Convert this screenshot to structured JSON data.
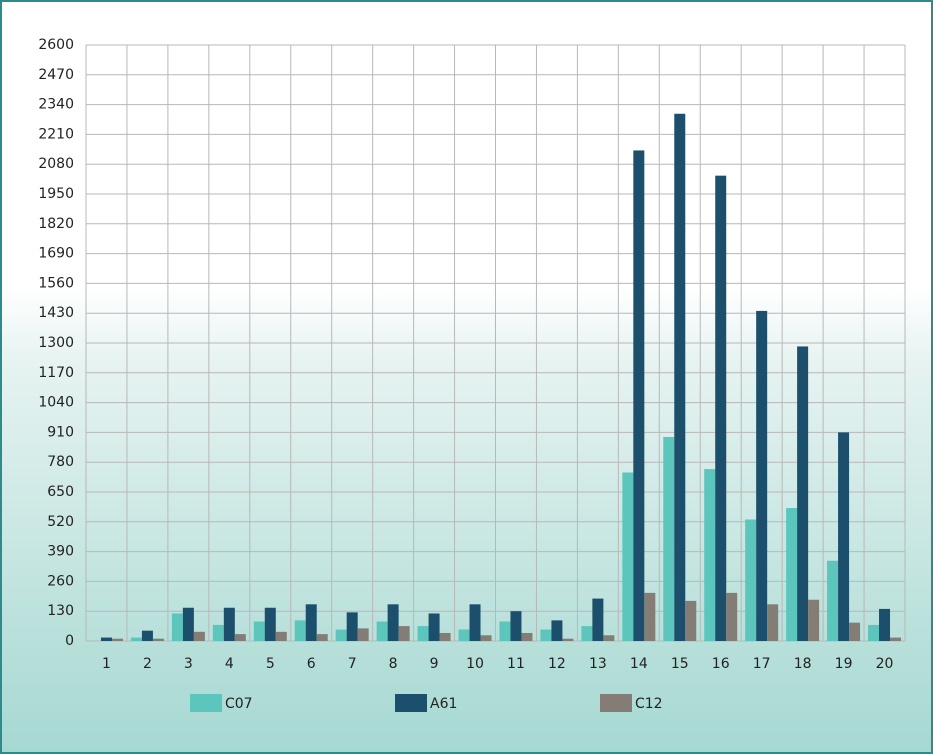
{
  "chart_data": {
    "type": "bar",
    "categories": [
      "1",
      "2",
      "3",
      "4",
      "5",
      "6",
      "7",
      "8",
      "9",
      "10",
      "11",
      "12",
      "13",
      "14",
      "15",
      "16",
      "17",
      "18",
      "19",
      "20"
    ],
    "series": [
      {
        "name": "C07",
        "color": "#5cc6bd",
        "values": [
          0,
          15,
          120,
          70,
          85,
          90,
          50,
          85,
          65,
          50,
          85,
          50,
          65,
          735,
          890,
          750,
          530,
          580,
          350,
          70
        ]
      },
      {
        "name": "A61",
        "color": "#1b4f6b",
        "values": [
          15,
          45,
          145,
          145,
          145,
          160,
          125,
          160,
          120,
          160,
          130,
          90,
          185,
          2140,
          2300,
          2030,
          1440,
          1285,
          910,
          140
        ]
      },
      {
        "name": "C12",
        "color": "#837d75",
        "values": [
          10,
          10,
          40,
          30,
          40,
          30,
          55,
          65,
          35,
          25,
          35,
          10,
          25,
          210,
          175,
          210,
          160,
          180,
          80,
          15
        ]
      }
    ],
    "ylim": [
      0,
      2600
    ],
    "yticks": [
      0,
      130,
      260,
      390,
      520,
      650,
      780,
      910,
      1040,
      1170,
      1300,
      1430,
      1560,
      1690,
      1820,
      1950,
      2080,
      2210,
      2340,
      2470,
      2600
    ],
    "grid": true
  }
}
